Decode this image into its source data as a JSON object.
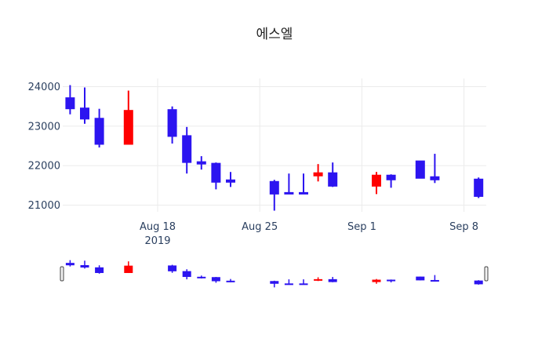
{
  "chart_data": {
    "type": "candlestick",
    "title": "에스엘",
    "xlabel": "",
    "ylabel": "",
    "ylim": [
      20800,
      24100
    ],
    "y_ticks": [
      21000,
      22000,
      23000,
      24000
    ],
    "y_tick_labels": [
      "21000",
      "22000",
      "23000",
      "24000"
    ],
    "x_ticks": [
      "2019-08-18",
      "2019-08-25",
      "2019-09-01",
      "2019-09-08"
    ],
    "x_tick_labels": [
      "Aug 18",
      "Aug 25",
      "Sep 1",
      "Sep 8"
    ],
    "x_tick_sublabel": "2019",
    "x_range": [
      "2019-08-11.4",
      "2019-09-09.5"
    ],
    "increasing_color": "#ff0000",
    "decreasing_color": "#2c14f0",
    "rangeslider": true,
    "grid": true,
    "legend": false,
    "candles": [
      {
        "date": "2019-08-12",
        "open": 23720,
        "high": 24040,
        "low": 23300,
        "close": 23440
      },
      {
        "date": "2019-08-13",
        "open": 23460,
        "high": 23980,
        "low": 23060,
        "close": 23180
      },
      {
        "date": "2019-08-14",
        "open": 23200,
        "high": 23440,
        "low": 22460,
        "close": 22540
      },
      {
        "date": "2019-08-16",
        "open": 22540,
        "high": 23900,
        "low": 22540,
        "close": 23400
      },
      {
        "date": "2019-08-19",
        "open": 23420,
        "high": 23500,
        "low": 22560,
        "close": 22740
      },
      {
        "date": "2019-08-20",
        "open": 22760,
        "high": 22980,
        "low": 21800,
        "close": 22080
      },
      {
        "date": "2019-08-21",
        "open": 22100,
        "high": 22240,
        "low": 21900,
        "close": 22040
      },
      {
        "date": "2019-08-22",
        "open": 22060,
        "high": 22080,
        "low": 21400,
        "close": 21580
      },
      {
        "date": "2019-08-23",
        "open": 21640,
        "high": 21840,
        "low": 21460,
        "close": 21580
      },
      {
        "date": "2019-08-26",
        "open": 21600,
        "high": 21640,
        "low": 20860,
        "close": 21280
      },
      {
        "date": "2019-08-27",
        "open": 21320,
        "high": 21800,
        "low": 21280,
        "close": 21280
      },
      {
        "date": "2019-08-28",
        "open": 21320,
        "high": 21800,
        "low": 21280,
        "close": 21280
      },
      {
        "date": "2019-08-29",
        "open": 21740,
        "high": 22040,
        "low": 21600,
        "close": 21820
      },
      {
        "date": "2019-08-30",
        "open": 21820,
        "high": 22080,
        "low": 21460,
        "close": 21480
      },
      {
        "date": "2019-09-02",
        "open": 21480,
        "high": 21840,
        "low": 21280,
        "close": 21760
      },
      {
        "date": "2019-09-03",
        "open": 21760,
        "high": 21780,
        "low": 21440,
        "close": 21640
      },
      {
        "date": "2019-09-05",
        "open": 22120,
        "high": 22120,
        "low": 21680,
        "close": 21680
      },
      {
        "date": "2019-09-06",
        "open": 21720,
        "high": 22300,
        "low": 21560,
        "close": 21640
      },
      {
        "date": "2019-09-09",
        "open": 21660,
        "high": 21700,
        "low": 21180,
        "close": 21220
      }
    ]
  }
}
